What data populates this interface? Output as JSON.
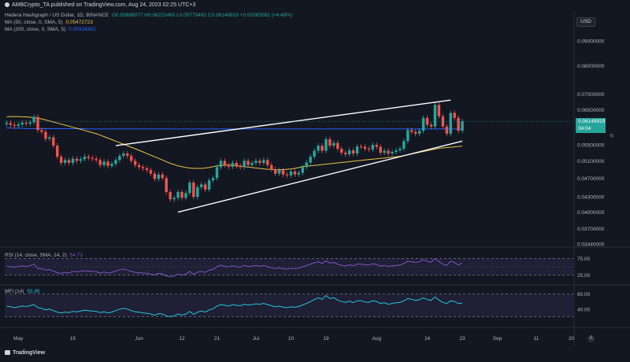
{
  "header": {
    "publisher": "AMBCrypto_TA published on TradingView.com, Aug 24, 2023 02:25 UTC+3"
  },
  "legend": {
    "main": "Hedera Hashgraph / US Dollar, 1D, BINANCE",
    "ohlc": "O0.05888077 H0.06221460 L0.05775492 C0.06149919 +0.00265582 (+4.48%)",
    "ma50_label": "MA (50, close, 0, SMA, 5)",
    "ma50_value": "0.05472723",
    "ma200_label": "MA (200, close, 0, SMA, 5)",
    "ma200_value": "0.05934362",
    "rsi_label": "RSI (14, close, SMA, 14, 2)",
    "rsi_value": "54.73",
    "mfi_label": "MFI (14)",
    "mfi_value": "55.95"
  },
  "currency_button": "USD",
  "price_tag": {
    "price": "0.06149919",
    "countdown": "34:04"
  },
  "extra_tick": "0",
  "gear_glyph": "A",
  "brand": "TradingView",
  "colors": {
    "up": "#26a69a",
    "down": "#ef5350",
    "ma50": "#e8c547",
    "ma200": "#2962ff",
    "rsi": "#7e57c2",
    "mfi": "#26c6da",
    "trend": "#ffffff"
  },
  "chart_data": {
    "type": "candlestick",
    "x": [
      "Apr 28",
      "Apr 29",
      "Apr 30",
      "May 1",
      "May 2",
      "May 3",
      "May 4",
      "May 5",
      "May 6",
      "May 7",
      "May 8",
      "May 9",
      "May 10",
      "May 11",
      "May 12",
      "May 13",
      "May 14",
      "May 15",
      "May 16",
      "May 17",
      "May 18",
      "May 19",
      "May 20",
      "May 21",
      "May 22",
      "May 23",
      "May 24",
      "May 25",
      "May 26",
      "May 27",
      "May 28",
      "May 29",
      "May 30",
      "May 31",
      "Jun 1",
      "Jun 2",
      "Jun 3",
      "Jun 4",
      "Jun 5",
      "Jun 6",
      "Jun 7",
      "Jun 8",
      "Jun 9",
      "Jun 10",
      "Jun 11",
      "Jun 12",
      "Jun 13",
      "Jun 14",
      "Jun 15",
      "Jun 16",
      "Jun 17",
      "Jun 18",
      "Jun 19",
      "Jun 20",
      "Jun 21",
      "Jun 22",
      "Jun 23",
      "Jun 24",
      "Jun 25",
      "Jun 26",
      "Jun 27",
      "Jun 28",
      "Jun 29",
      "Jun 30",
      "Jul 1",
      "Jul 2",
      "Jul 3",
      "Jul 4",
      "Jul 5",
      "Jul 6",
      "Jul 7",
      "Jul 8",
      "Jul 9",
      "Jul 10",
      "Jul 11",
      "Jul 12",
      "Jul 13",
      "Jul 14",
      "Jul 15",
      "Jul 16",
      "Jul 17",
      "Jul 18",
      "Jul 19",
      "Jul 20",
      "Jul 21",
      "Jul 22",
      "Jul 23",
      "Jul 24",
      "Jul 25",
      "Jul 26",
      "Jul 27",
      "Jul 28",
      "Jul 29",
      "Jul 30",
      "Jul 31",
      "Aug 1",
      "Aug 2",
      "Aug 3",
      "Aug 4",
      "Aug 5",
      "Aug 6",
      "Aug 7",
      "Aug 8",
      "Aug 9",
      "Aug 10",
      "Aug 11",
      "Aug 12",
      "Aug 13",
      "Aug 14",
      "Aug 15",
      "Aug 16",
      "Aug 17",
      "Aug 18",
      "Aug 19",
      "Aug 20",
      "Aug 21",
      "Aug 22",
      "Aug 23"
    ],
    "close": [
      0.061,
      0.0605,
      0.0602,
      0.0606,
      0.0611,
      0.0608,
      0.0612,
      0.0628,
      0.059,
      0.0585,
      0.0566,
      0.057,
      0.0548,
      0.052,
      0.0505,
      0.0512,
      0.0505,
      0.0515,
      0.051,
      0.0514,
      0.052,
      0.0517,
      0.0515,
      0.0512,
      0.05,
      0.0508,
      0.0498,
      0.0503,
      0.0512,
      0.0522,
      0.0528,
      0.0522,
      0.051,
      0.05,
      0.0495,
      0.0492,
      0.0488,
      0.048,
      0.0468,
      0.0478,
      0.047,
      0.044,
      0.0425,
      0.0428,
      0.044,
      0.0428,
      0.0438,
      0.046,
      0.043,
      0.045,
      0.0456,
      0.0445,
      0.0465,
      0.047,
      0.0495,
      0.051,
      0.05,
      0.0496,
      0.0505,
      0.0498,
      0.0495,
      0.051,
      0.05,
      0.0505,
      0.051,
      0.0505,
      0.0512,
      0.05,
      0.049,
      0.048,
      0.0488,
      0.0478,
      0.0476,
      0.0485,
      0.0478,
      0.0482,
      0.0495,
      0.0506,
      0.052,
      0.0535,
      0.0548,
      0.0535,
      0.0565,
      0.0548,
      0.0555,
      0.054,
      0.053,
      0.0526,
      0.0536,
      0.0528,
      0.0546,
      0.0545,
      0.054,
      0.0538,
      0.055,
      0.0545,
      0.053,
      0.0535,
      0.0528,
      0.0532,
      0.0536,
      0.054,
      0.056,
      0.059,
      0.0585,
      0.058,
      0.0588,
      0.0625,
      0.0605,
      0.06,
      0.0665,
      0.063,
      0.06,
      0.058,
      0.064,
      0.0625,
      0.0588,
      0.0615
    ],
    "open_offset_note": "",
    "ma50": [
      0.0628,
      0.0629,
      0.0629,
      0.0629,
      0.0628,
      0.0628,
      0.0627,
      0.0626,
      0.0624,
      0.0622,
      0.0619,
      0.0616,
      0.0613,
      0.061,
      0.0607,
      0.0604,
      0.0601,
      0.0598,
      0.0595,
      0.0592,
      0.0589,
      0.0586,
      0.0583,
      0.058,
      0.0576,
      0.0572,
      0.0568,
      0.0564,
      0.056,
      0.0556,
      0.0552,
      0.0548,
      0.0544,
      0.054,
      0.0536,
      0.0532,
      0.0528,
      0.0524,
      0.052,
      0.0516,
      0.0512,
      0.0508,
      0.0504,
      0.0501,
      0.0498,
      0.0496,
      0.0494,
      0.0493,
      0.0492,
      0.0492,
      0.0492,
      0.0493,
      0.0494,
      0.0496,
      0.0498,
      0.0499,
      0.05,
      0.05,
      0.0499,
      0.0498,
      0.0497,
      0.0496,
      0.0495,
      0.0494,
      0.0493,
      0.0492,
      0.0491,
      0.049,
      0.049,
      0.0489,
      0.0489,
      0.0489,
      0.049,
      0.0491,
      0.0492,
      0.0494,
      0.0496,
      0.0497,
      0.0498,
      0.0499,
      0.05,
      0.0501,
      0.0502,
      0.0503,
      0.0504,
      0.0505,
      0.0506,
      0.0507,
      0.0508,
      0.0509,
      0.051,
      0.0511,
      0.0512,
      0.0513,
      0.0514,
      0.0515,
      0.0516,
      0.0517,
      0.0518,
      0.0519,
      0.052,
      0.0521,
      0.0523,
      0.0525,
      0.0527,
      0.0529,
      0.0531,
      0.0533,
      0.0535,
      0.0537,
      0.0539,
      0.0541,
      0.0542,
      0.0543,
      0.0544,
      0.0545,
      0.0546,
      0.0547
    ],
    "ma200": [
      0.0596,
      0.0596,
      0.0595,
      0.0595,
      0.0595,
      0.0594,
      0.0594,
      0.0594,
      0.0594,
      0.0594,
      0.0594,
      0.0594,
      0.0594,
      0.0594,
      0.0594,
      0.0594,
      0.0594,
      0.0594,
      0.0594,
      0.0594,
      0.0594,
      0.0593,
      0.0593,
      0.0593,
      0.0593,
      0.0593,
      0.0593,
      0.0593,
      0.0593,
      0.0593,
      0.0593,
      0.0593,
      0.0593,
      0.0593,
      0.0593,
      0.0593,
      0.0593,
      0.0593,
      0.0593,
      0.0593,
      0.0593,
      0.0593,
      0.0593,
      0.0593,
      0.0593,
      0.0593,
      0.0593,
      0.0593,
      0.0593,
      0.0593,
      0.0593,
      0.0593,
      0.0593,
      0.0593,
      0.0593,
      0.0593,
      0.0593,
      0.0593,
      0.0593,
      0.0593,
      0.0593,
      0.0593,
      0.0593,
      0.0593,
      0.0593,
      0.0593,
      0.0593,
      0.0593,
      0.0593,
      0.0593,
      0.0593,
      0.0593,
      0.0593,
      0.0593,
      0.0593,
      0.0593,
      0.0593,
      0.0593,
      0.0593,
      0.0593,
      0.0593,
      0.0593,
      0.0593,
      0.0593,
      0.0593,
      0.0593,
      0.0593,
      0.0593,
      0.0593,
      0.0593,
      0.0593,
      0.0593,
      0.0593,
      0.0593,
      0.0593,
      0.0593,
      0.0593,
      0.0593,
      0.0593,
      0.0593,
      0.0593,
      0.0593,
      0.0593,
      0.0593,
      0.0593,
      0.0593,
      0.0593,
      0.0593,
      0.0593,
      0.0593,
      0.0593,
      0.0593,
      0.0593,
      0.0593,
      0.0593,
      0.0593,
      0.0593,
      0.0593
    ],
    "rsi": [
      52,
      50,
      49,
      51,
      53,
      51,
      53,
      58,
      45,
      44,
      40,
      42,
      37,
      32,
      30,
      33,
      31,
      36,
      35,
      36,
      38,
      37,
      36,
      35,
      31,
      34,
      31,
      33,
      37,
      41,
      43,
      40,
      36,
      33,
      32,
      31,
      30,
      28,
      25,
      30,
      28,
      22,
      20,
      22,
      28,
      24,
      28,
      36,
      27,
      34,
      36,
      33,
      40,
      42,
      50,
      55,
      51,
      50,
      53,
      50,
      49,
      54,
      51,
      52,
      54,
      52,
      54,
      50,
      47,
      44,
      47,
      44,
      43,
      46,
      44,
      46,
      50,
      54,
      58,
      62,
      65,
      60,
      68,
      61,
      63,
      58,
      54,
      53,
      56,
      53,
      58,
      58,
      56,
      55,
      59,
      57,
      52,
      54,
      51,
      53,
      54,
      55,
      60,
      67,
      65,
      63,
      65,
      72,
      66,
      64,
      75,
      66,
      58,
      54,
      67,
      63,
      55,
      62
    ],
    "mfi": [
      48,
      46,
      44,
      46,
      48,
      47,
      49,
      52,
      44,
      42,
      38,
      40,
      36,
      32,
      30,
      32,
      31,
      34,
      33,
      35,
      37,
      36,
      35,
      34,
      31,
      33,
      30,
      32,
      36,
      40,
      42,
      40,
      36,
      33,
      32,
      30,
      29,
      27,
      24,
      28,
      27,
      22,
      20,
      22,
      27,
      24,
      27,
      34,
      26,
      32,
      35,
      32,
      38,
      41,
      48,
      52,
      50,
      48,
      52,
      50,
      49,
      53,
      51,
      52,
      54,
      53,
      55,
      52,
      49,
      46,
      48,
      45,
      44,
      46,
      45,
      47,
      51,
      55,
      60,
      65,
      70,
      66,
      76,
      68,
      70,
      64,
      60,
      58,
      61,
      57,
      62,
      62,
      59,
      58,
      62,
      60,
      55,
      57,
      53,
      55,
      57,
      58,
      62,
      68,
      66,
      63,
      65,
      70,
      65,
      63,
      72,
      64,
      58,
      55,
      62,
      60,
      55,
      56
    ],
    "trendlines": [
      {
        "from": [
          "May 26",
          0.0548
        ],
        "to": [
          "Aug 20",
          0.068
        ]
      },
      {
        "from": [
          "Jun 11",
          0.04
        ],
        "to": [
          "Aug 23",
          0.056
        ]
      }
    ],
    "price_ticks": [
      "0.09000000",
      "0.08000000",
      "0.07000000",
      "0.06500000",
      "0.05500000",
      "0.05100000",
      "0.04700000",
      "0.04300000",
      "0.04000000",
      "0.03700000",
      "0.03440000"
    ],
    "rsi_ticks": [
      "75.00",
      "25.00"
    ],
    "mfi_ticks": [
      "80.00",
      "40.00"
    ],
    "x_ticks": [
      "May",
      "15",
      "Jun",
      "12",
      "21",
      "Jul",
      "10",
      "19",
      "Aug",
      "14",
      "23",
      "Sep",
      "11",
      "20"
    ],
    "price_scale": "log"
  }
}
